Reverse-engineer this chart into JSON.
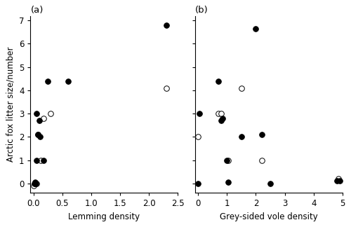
{
  "panel_a": {
    "title": "(a)",
    "xlabel": "Lemming density",
    "ylabel": "Arctic fox litter size/number",
    "xlim": [
      -0.05,
      2.5
    ],
    "ylim": [
      -0.4,
      7.2
    ],
    "xticks": [
      0.0,
      0.5,
      1.0,
      1.5,
      2.0,
      2.5
    ],
    "yticks": [
      0,
      1,
      2,
      3,
      4,
      5,
      6,
      7
    ],
    "filled_x": [
      0.02,
      0.03,
      0.04,
      0.05,
      0.06,
      0.08,
      0.1,
      0.12,
      0.18,
      0.25,
      0.6,
      2.3
    ],
    "filled_y": [
      0.0,
      0.05,
      0.0,
      1.0,
      3.0,
      2.1,
      2.7,
      2.0,
      1.0,
      4.4,
      4.4,
      6.8
    ],
    "open_x": [
      0.0,
      0.03,
      0.06,
      0.08,
      0.13,
      0.18,
      0.3,
      2.3
    ],
    "open_y": [
      -0.1,
      0.0,
      0.0,
      2.1,
      1.0,
      2.8,
      3.0,
      4.1
    ]
  },
  "panel_b": {
    "title": "(b)",
    "xlabel": "Grey-sided vole density",
    "xlim": [
      -0.1,
      5.0
    ],
    "ylim": [
      -0.4,
      7.2
    ],
    "xticks": [
      0,
      1,
      2,
      3,
      4,
      5
    ],
    "yticks": [
      0,
      1,
      2,
      3,
      4,
      5,
      6,
      7
    ],
    "filled_x": [
      0.0,
      0.05,
      0.7,
      0.8,
      0.85,
      1.0,
      1.05,
      1.5,
      2.0,
      2.2,
      2.5,
      4.8,
      4.9
    ],
    "filled_y": [
      0.0,
      3.0,
      4.4,
      2.7,
      2.8,
      1.0,
      0.05,
      2.0,
      6.65,
      2.1,
      0.0,
      0.1,
      0.1
    ],
    "open_x": [
      0.0,
      0.7,
      0.8,
      1.05,
      1.5,
      2.2,
      4.85
    ],
    "open_y": [
      2.0,
      3.0,
      3.0,
      1.0,
      4.1,
      1.0,
      0.2
    ]
  },
  "marker_size": 30,
  "filled_color": "black",
  "open_color": "white",
  "edge_color": "black",
  "edge_lw": 0.7,
  "bg_color": "white",
  "font_size": 8.5,
  "label_font_size": 8.5,
  "title_font_size": 9.5
}
